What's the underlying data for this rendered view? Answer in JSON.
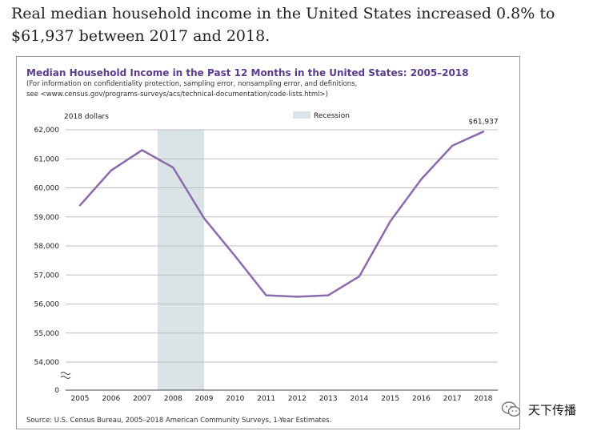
{
  "headline": "Real median household income in the United States increased 0.8% to $61,937 between 2017 and 2018.",
  "chart_data": {
    "type": "line",
    "title": "Median Household Income in the Past 12 Months in the United States: 2005–2018",
    "note_line1": "(For information on confidentiality protection, sampling error, nonsampling error, and definitions,",
    "note_line2": "see <www.census.gov/programs-surveys/acs/technical-documentation/code-lists.html>)",
    "ylabel": "2018 dollars",
    "legend_label": "Recession",
    "colors": {
      "line": "#8b6bab",
      "title": "#5b3b8c",
      "recession": "#dae3e5",
      "grid": "#bfbfbf"
    },
    "x": [
      "2005",
      "2006",
      "2007",
      "2008",
      "2009",
      "2010",
      "2011",
      "2012",
      "2013",
      "2014",
      "2015",
      "2016",
      "2017",
      "2018"
    ],
    "series": [
      {
        "name": "Median household income",
        "values": [
          59400,
          60600,
          61300,
          60700,
          58950,
          57650,
          56300,
          56250,
          56300,
          56950,
          58850,
          60300,
          61450,
          61937
        ]
      }
    ],
    "y_ticks": [
      54000,
      55000,
      56000,
      57000,
      58000,
      59000,
      60000,
      61000,
      62000
    ],
    "y_tick_labels": [
      "54,000",
      "55,000",
      "56,000",
      "57,000",
      "58,000",
      "59,000",
      "60,000",
      "61,000",
      "62,000"
    ],
    "zero_label": "0",
    "ylim": [
      53000,
      62000
    ],
    "recession": {
      "start": "2007.5",
      "end": "2009"
    },
    "annotation": "$61,937",
    "source": "Source: U.S. Census Bureau, 2005–2018 American Community Surveys, 1-Year Estimates."
  },
  "watermark": {
    "text": "天下传播",
    "icon": "wechat-icon"
  }
}
